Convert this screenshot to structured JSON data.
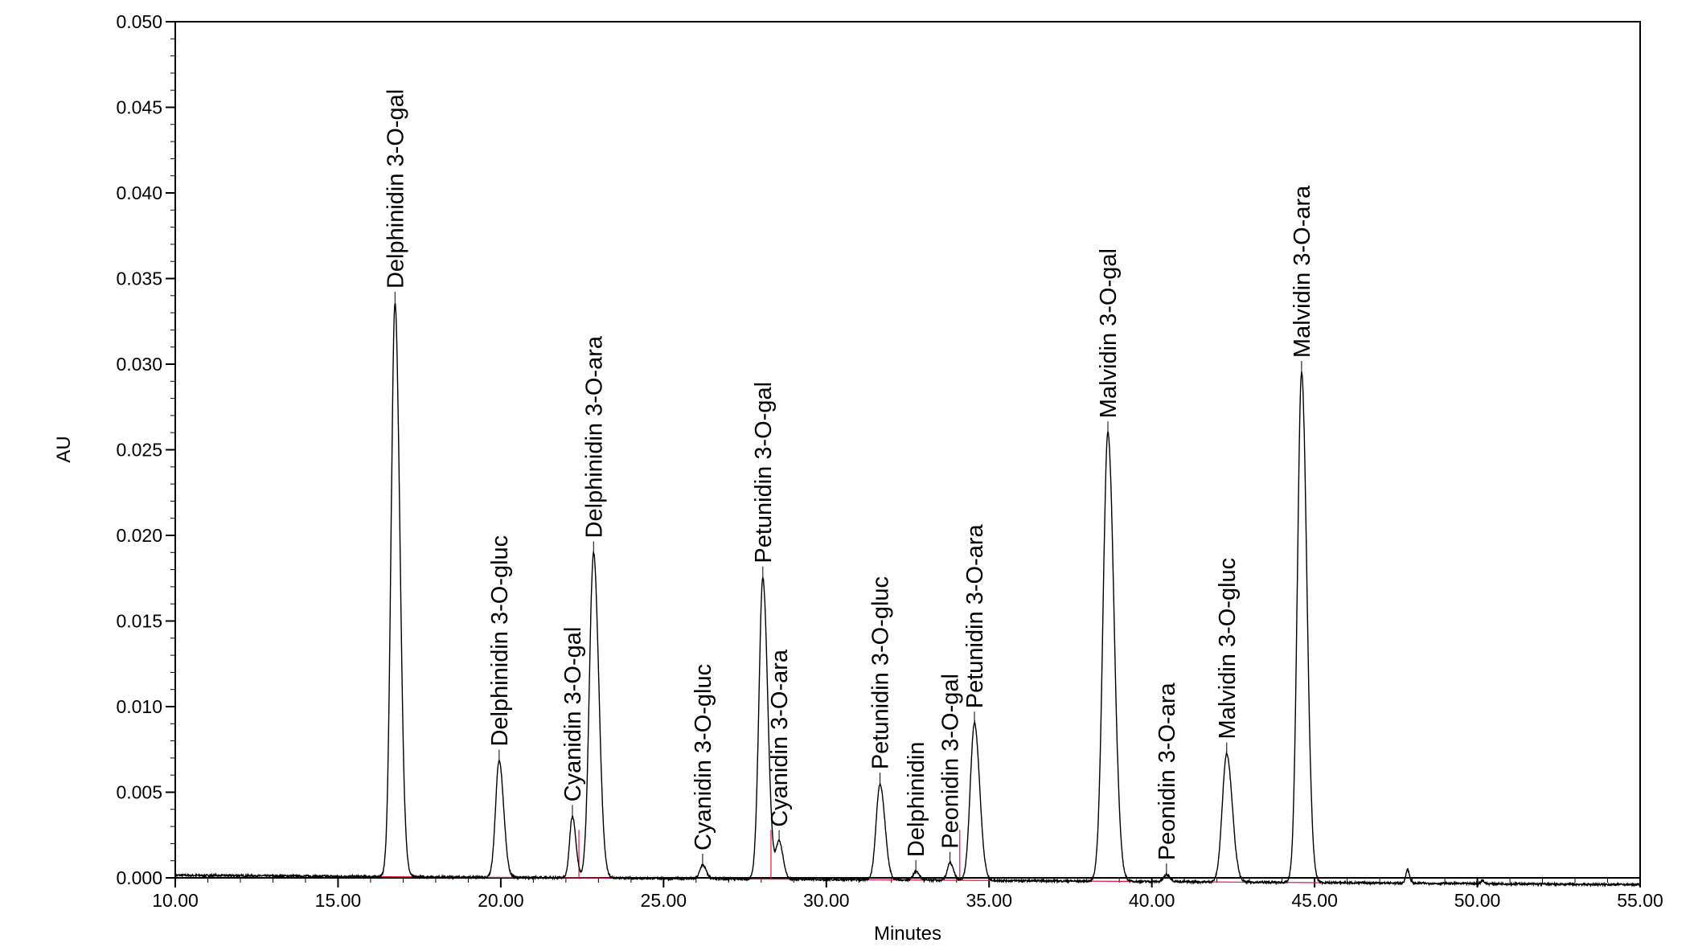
{
  "chart_data": {
    "type": "line",
    "xlabel": "Minutes",
    "ylabel": "AU",
    "xlim": [
      10.0,
      55.0
    ],
    "ylim": [
      0.0,
      0.05
    ],
    "x_ticks": [
      "10.00",
      "15.00",
      "20.00",
      "25.00",
      "30.00",
      "35.00",
      "40.00",
      "45.00",
      "50.00",
      "55.00"
    ],
    "y_ticks": [
      "0.000",
      "0.005",
      "0.010",
      "0.015",
      "0.020",
      "0.025",
      "0.030",
      "0.035",
      "0.040",
      "0.045",
      "0.050"
    ],
    "colors": {
      "trace": "#000000",
      "baseline": "#e8143c"
    },
    "baseline_drift": [
      [
        10.0,
        0.00015
      ],
      [
        55.0,
        -0.0004
      ]
    ],
    "peaks": [
      {
        "label": "Delphinidin 3-O-gal",
        "rt": 16.75,
        "height": 0.0335,
        "width": 0.28
      },
      {
        "label": "Delphinidin 3-O-gluc",
        "rt": 19.95,
        "height": 0.0068,
        "width": 0.26
      },
      {
        "label": "Cyanidin 3-O-gal",
        "rt": 22.2,
        "height": 0.0036,
        "width": 0.2
      },
      {
        "label": "Delphinidin 3-O-ara",
        "rt": 22.85,
        "height": 0.019,
        "width": 0.3
      },
      {
        "label": "Cyanidin 3-O-gluc",
        "rt": 26.2,
        "height": 0.0008,
        "width": 0.2
      },
      {
        "label": "Petunidin 3-O-gal",
        "rt": 28.05,
        "height": 0.0176,
        "width": 0.28
      },
      {
        "label": "Cyanidin 3-O-ara",
        "rt": 28.55,
        "height": 0.0022,
        "width": 0.22
      },
      {
        "label": "Petunidin 3-O-gluc",
        "rt": 31.65,
        "height": 0.0056,
        "width": 0.28
      },
      {
        "label": "Delphinidin",
        "rt": 32.75,
        "height": 0.0005,
        "width": 0.2
      },
      {
        "label": "Peonidin 3-O-gal",
        "rt": 33.8,
        "height": 0.001,
        "width": 0.2
      },
      {
        "label": "Petunidin 3-O-ara",
        "rt": 34.55,
        "height": 0.0092,
        "width": 0.3
      },
      {
        "label": "Malvidin 3-O-gal",
        "rt": 38.65,
        "height": 0.0262,
        "width": 0.35
      },
      {
        "label": "Peonidin 3-O-ara",
        "rt": 40.45,
        "height": 0.0004,
        "width": 0.2
      },
      {
        "label": "Malvidin 3-O-gluc",
        "rt": 42.3,
        "height": 0.0075,
        "width": 0.32
      },
      {
        "label": "Malvidin 3-O-ara",
        "rt": 44.6,
        "height": 0.0298,
        "width": 0.3
      },
      {
        "label": "",
        "rt": 47.85,
        "height": 0.0008,
        "width": 0.12
      },
      {
        "label": "",
        "rt": 50.15,
        "height": 0.0002,
        "width": 0.1
      }
    ]
  }
}
